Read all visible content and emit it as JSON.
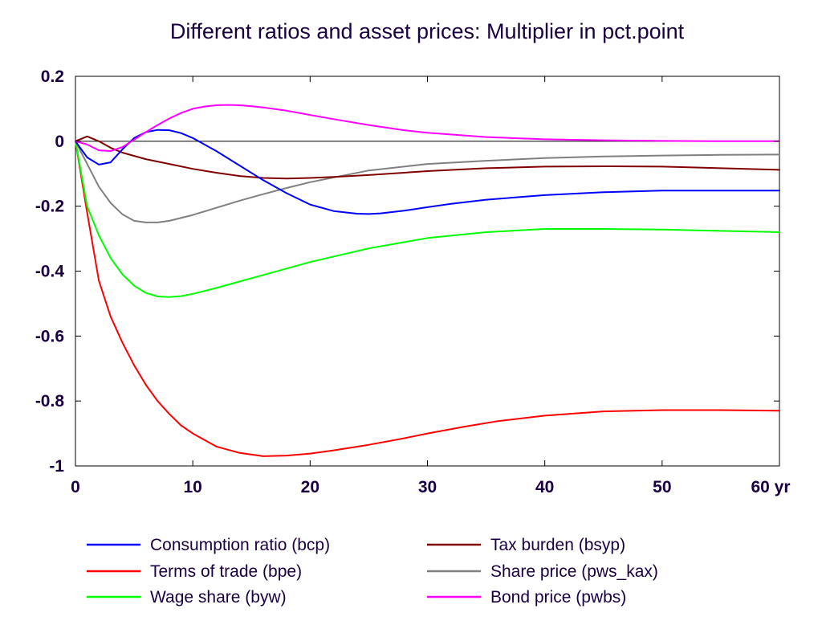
{
  "chart_data": {
    "type": "line",
    "title": "Different ratios and asset prices: Multiplier in pct.point",
    "xlabel": "",
    "ylabel": "",
    "x_unit": "yr",
    "xlim": [
      0,
      60
    ],
    "ylim": [
      -1,
      0.2
    ],
    "x_ticks": [
      0,
      10,
      20,
      30,
      40,
      50,
      60
    ],
    "x_tick_labels": [
      "0",
      "10",
      "20",
      "30",
      "40",
      "50",
      "60 yr"
    ],
    "y_ticks": [
      0.2,
      0,
      -0.2,
      -0.4,
      -0.6,
      -0.8,
      -1
    ],
    "y_tick_labels": [
      "0.2",
      "0",
      "-0.2",
      "-0.4",
      "-0.6",
      "-0.8",
      "-1"
    ],
    "grid": false,
    "zero_line": true,
    "legend_position": "bottom",
    "series": [
      {
        "name": "Consumption ratio (bcp)",
        "color": "#0000ff",
        "x": [
          0,
          1,
          2,
          3,
          4,
          5,
          6,
          7,
          8,
          9,
          10,
          12,
          14,
          16,
          18,
          20,
          22,
          24,
          25,
          26,
          28,
          30,
          32,
          35,
          40,
          45,
          50,
          55,
          60
        ],
        "y": [
          0,
          -0.05,
          -0.072,
          -0.065,
          -0.025,
          0.01,
          0.028,
          0.035,
          0.034,
          0.025,
          0.01,
          -0.03,
          -0.075,
          -0.12,
          -0.16,
          -0.195,
          -0.215,
          -0.223,
          -0.224,
          -0.222,
          -0.214,
          -0.203,
          -0.193,
          -0.18,
          -0.166,
          -0.157,
          -0.152,
          -0.152,
          -0.152
        ]
      },
      {
        "name": "Terms of trade (bpe)",
        "color": "#ff0000",
        "x": [
          0,
          1,
          2,
          3,
          4,
          5,
          6,
          7,
          8,
          9,
          10,
          12,
          14,
          16,
          18,
          20,
          22,
          25,
          28,
          30,
          33,
          36,
          40,
          45,
          50,
          55,
          60
        ],
        "y": [
          0,
          -0.22,
          -0.43,
          -0.54,
          -0.62,
          -0.69,
          -0.75,
          -0.8,
          -0.84,
          -0.875,
          -0.9,
          -0.94,
          -0.96,
          -0.97,
          -0.968,
          -0.962,
          -0.952,
          -0.935,
          -0.915,
          -0.9,
          -0.88,
          -0.862,
          -0.845,
          -0.832,
          -0.828,
          -0.828,
          -0.83
        ]
      },
      {
        "name": "Wage share (byw)",
        "color": "#00ff00",
        "x": [
          0,
          1,
          2,
          3,
          4,
          5,
          6,
          7,
          8,
          9,
          10,
          12,
          14,
          16,
          18,
          20,
          25,
          30,
          35,
          40,
          45,
          50,
          55,
          60
        ],
        "y": [
          0,
          -0.2,
          -0.29,
          -0.36,
          -0.41,
          -0.445,
          -0.467,
          -0.478,
          -0.48,
          -0.477,
          -0.47,
          -0.452,
          -0.432,
          -0.412,
          -0.392,
          -0.372,
          -0.33,
          -0.298,
          -0.28,
          -0.27,
          -0.27,
          -0.272,
          -0.276,
          -0.28
        ]
      },
      {
        "name": "Tax burden (bsyp)",
        "color": "#800000",
        "x": [
          0,
          1,
          2,
          3,
          4,
          6,
          8,
          10,
          12,
          14,
          16,
          18,
          20,
          22,
          25,
          30,
          35,
          40,
          45,
          50,
          55,
          60
        ],
        "y": [
          0,
          0.015,
          0,
          -0.02,
          -0.035,
          -0.055,
          -0.07,
          -0.085,
          -0.097,
          -0.107,
          -0.113,
          -0.115,
          -0.113,
          -0.11,
          -0.104,
          -0.092,
          -0.083,
          -0.078,
          -0.077,
          -0.078,
          -0.083,
          -0.088
        ]
      },
      {
        "name": "Share price (pws_kax)",
        "color": "#808080",
        "x": [
          0,
          1,
          2,
          3,
          4,
          5,
          6,
          7,
          8,
          10,
          12,
          14,
          16,
          18,
          20,
          25,
          30,
          35,
          40,
          45,
          50,
          55,
          60
        ],
        "y": [
          0,
          -0.07,
          -0.14,
          -0.19,
          -0.225,
          -0.245,
          -0.25,
          -0.25,
          -0.245,
          -0.227,
          -0.205,
          -0.183,
          -0.163,
          -0.144,
          -0.126,
          -0.09,
          -0.07,
          -0.06,
          -0.052,
          -0.047,
          -0.044,
          -0.042,
          -0.041
        ]
      },
      {
        "name": "Bond price (pwbs)",
        "color": "#ff00ff",
        "x": [
          0,
          1,
          2,
          3,
          4,
          5,
          6,
          7,
          8,
          9,
          10,
          11,
          12,
          13,
          14,
          15,
          16,
          18,
          20,
          22,
          25,
          28,
          30,
          35,
          40,
          45,
          50,
          55,
          60
        ],
        "y": [
          0,
          -0.01,
          -0.028,
          -0.03,
          -0.018,
          0.005,
          0.028,
          0.05,
          0.07,
          0.087,
          0.1,
          0.107,
          0.111,
          0.112,
          0.111,
          0.108,
          0.104,
          0.094,
          0.081,
          0.068,
          0.05,
          0.034,
          0.026,
          0.013,
          0.006,
          0.003,
          0.001,
          0,
          0
        ]
      }
    ]
  }
}
